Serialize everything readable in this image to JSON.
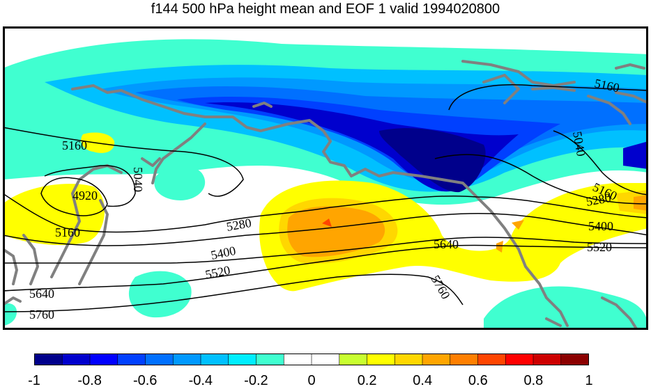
{
  "title": "f144 500 hPa height mean and EOF 1 valid 1994020800",
  "contour_labels": {
    "c5160a": "5160",
    "c5040a": "5040",
    "c4920": "4920",
    "c5160b": "5160",
    "c5280a": "5280",
    "c5400a": "5400",
    "c5520a": "5520",
    "c5640a": "5640",
    "c5760a": "5760",
    "c5160c": "5160",
    "c5040b": "5040",
    "c5160d": "5160",
    "c5280b": "5280",
    "c5400b": "5400",
    "c5520b": "5520",
    "c5640b": "5640",
    "c5760b": "5760"
  },
  "colorbar": {
    "colors": [
      "#00008b",
      "#0000cd",
      "#0000ff",
      "#0040ff",
      "#0070ff",
      "#0099ff",
      "#00c0ff",
      "#00eeff",
      "#40ffd0",
      "#ffffff",
      "#ffffff",
      "#c8ff30",
      "#ffff00",
      "#ffd700",
      "#ffa500",
      "#ff7f00",
      "#ff4500",
      "#ff0000",
      "#cd0000",
      "#8b0000"
    ],
    "tick_labels": [
      "-1",
      "-0.8",
      "-0.6",
      "-0.4",
      "-0.2",
      "0",
      "0.2",
      "0.4",
      "0.6",
      "0.8",
      "1"
    ]
  }
}
